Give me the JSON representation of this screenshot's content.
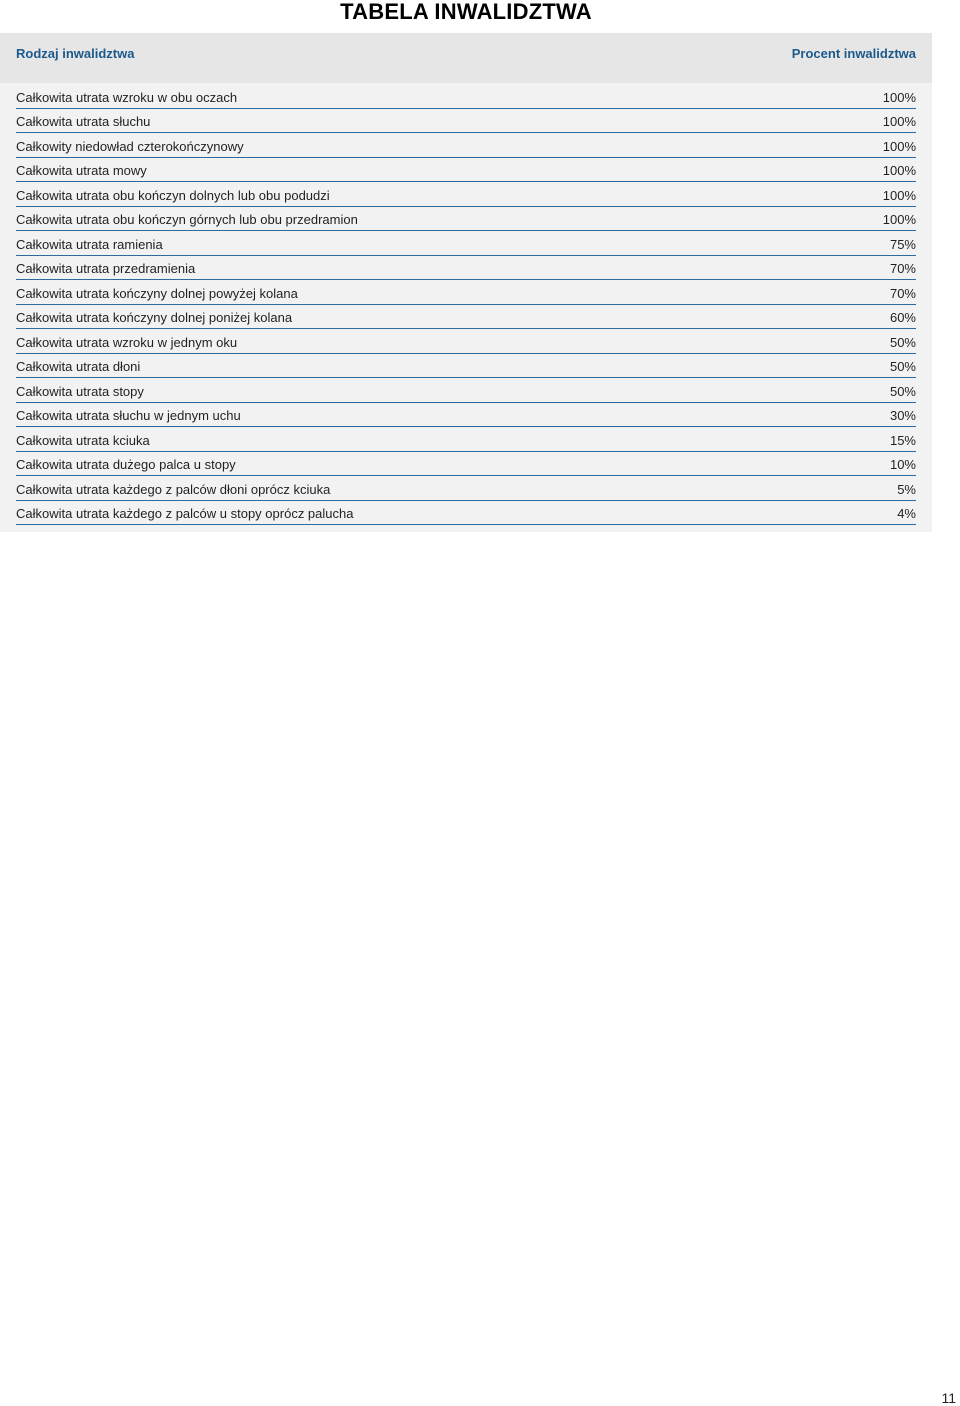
{
  "title": "TABELA INWALIDZTWA",
  "table": {
    "header": {
      "left": "Rodzaj inwalidztwa",
      "right": "Procent inwalidztwa"
    },
    "rows": [
      {
        "label": "Całkowita utrata wzroku w obu oczach",
        "value": "100%"
      },
      {
        "label": "Całkowita utrata słuchu",
        "value": "100%"
      },
      {
        "label": "Całkowity niedowład czterokończynowy",
        "value": "100%"
      },
      {
        "label": "Całkowita utrata mowy",
        "value": "100%"
      },
      {
        "label": "Całkowita utrata obu kończyn dolnych lub obu podudzi",
        "value": "100%"
      },
      {
        "label": "Całkowita utrata obu kończyn górnych lub obu przedramion",
        "value": "100%"
      },
      {
        "label": "Całkowita utrata ramienia",
        "value": "75%"
      },
      {
        "label": "Całkowita utrata przedramienia",
        "value": "70%"
      },
      {
        "label": "Całkowita utrata kończyny dolnej powyżej kolana",
        "value": "70%"
      },
      {
        "label": "Całkowita utrata kończyny dolnej poniżej kolana",
        "value": "60%"
      },
      {
        "label": "Całkowita utrata wzroku w jednym oku",
        "value": "50%"
      },
      {
        "label": "Całkowita utrata dłoni",
        "value": "50%"
      },
      {
        "label": "Całkowita utrata stopy",
        "value": "50%"
      },
      {
        "label": "Całkowita utrata słuchu w jednym uchu",
        "value": "30%"
      },
      {
        "label": "Całkowita utrata kciuka",
        "value": "15%"
      },
      {
        "label": "Całkowita utrata dużego palca u stopy",
        "value": "10%"
      },
      {
        "label": "Całkowita utrata każdego z palców dłoni oprócz kciuka",
        "value": "5%"
      },
      {
        "label": "Całkowita utrata każdego z palców u stopy oprócz palucha",
        "value": "4%"
      }
    ]
  },
  "page_number": "11",
  "colors": {
    "header_text": "#1d5a8c",
    "row_rule": "#2f6a9c",
    "panel_bg": "#f2f2f2",
    "header_bg": "#e6e6e6"
  }
}
